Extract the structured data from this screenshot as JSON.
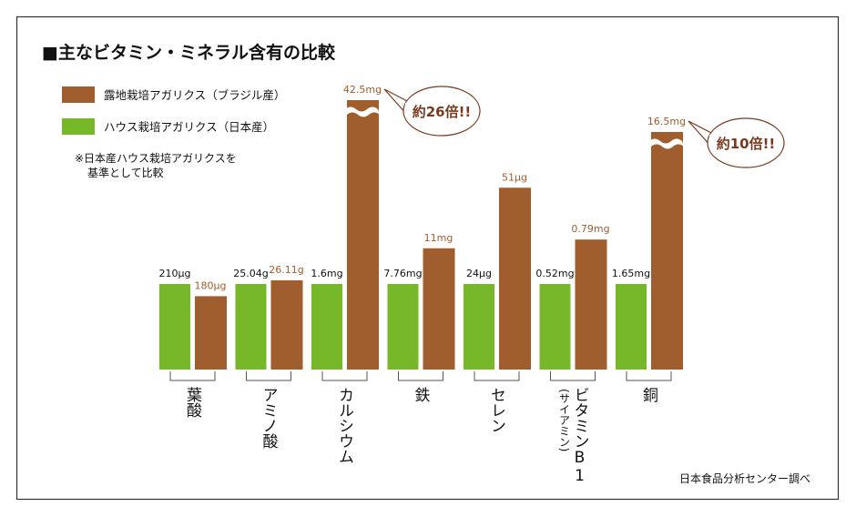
{
  "chart_data": {
    "type": "bar",
    "title": "■主なビタミン・ミネラル含有の比較",
    "note_lines": [
      "※日本産ハウス栽培アガリクスを",
      "基準として比較"
    ],
    "source": "日本食品分析センター調べ",
    "colors": {
      "brazil": "#a05d2e",
      "japan": "#76b82a",
      "callout_text": "#7a3a1f",
      "frame": "#333333"
    },
    "series": [
      {
        "name": "ハウス栽培アガリクス（日本産）",
        "key": "japan",
        "labels": [
          "210μg",
          "25.04g",
          "1.6mg",
          "7.76mg",
          "24μg",
          "0.52mg",
          "1.65mg"
        ],
        "values": [
          210,
          25.04,
          1.6,
          7.76,
          24,
          0.52,
          1.65
        ]
      },
      {
        "name": "露地栽培アガリクス（ブラジル産）",
        "key": "brazil",
        "labels": [
          "180μg",
          "26.11g",
          "42.5mg",
          "11mg",
          "51μg",
          "0.79mg",
          "16.5mg"
        ],
        "values": [
          180,
          26.11,
          42.5,
          11,
          51,
          0.79,
          16.5
        ]
      }
    ],
    "categories": [
      {
        "label": "葉酸",
        "sub": ""
      },
      {
        "label": "アミノ酸",
        "sub": ""
      },
      {
        "label": "カルシウム",
        "sub": ""
      },
      {
        "label": "鉄",
        "sub": ""
      },
      {
        "label": "セレン",
        "sub": ""
      },
      {
        "label": "ビタミンB1",
        "sub": "(サイアミン)"
      },
      {
        "label": "銅",
        "sub": ""
      }
    ],
    "broken_axis_categories": [
      "カルシウム",
      "銅"
    ],
    "annotations": [
      {
        "category": "カルシウム",
        "text": "約26倍!!"
      },
      {
        "category": "銅",
        "text": "約10倍!!"
      }
    ],
    "baseline": "japan"
  }
}
